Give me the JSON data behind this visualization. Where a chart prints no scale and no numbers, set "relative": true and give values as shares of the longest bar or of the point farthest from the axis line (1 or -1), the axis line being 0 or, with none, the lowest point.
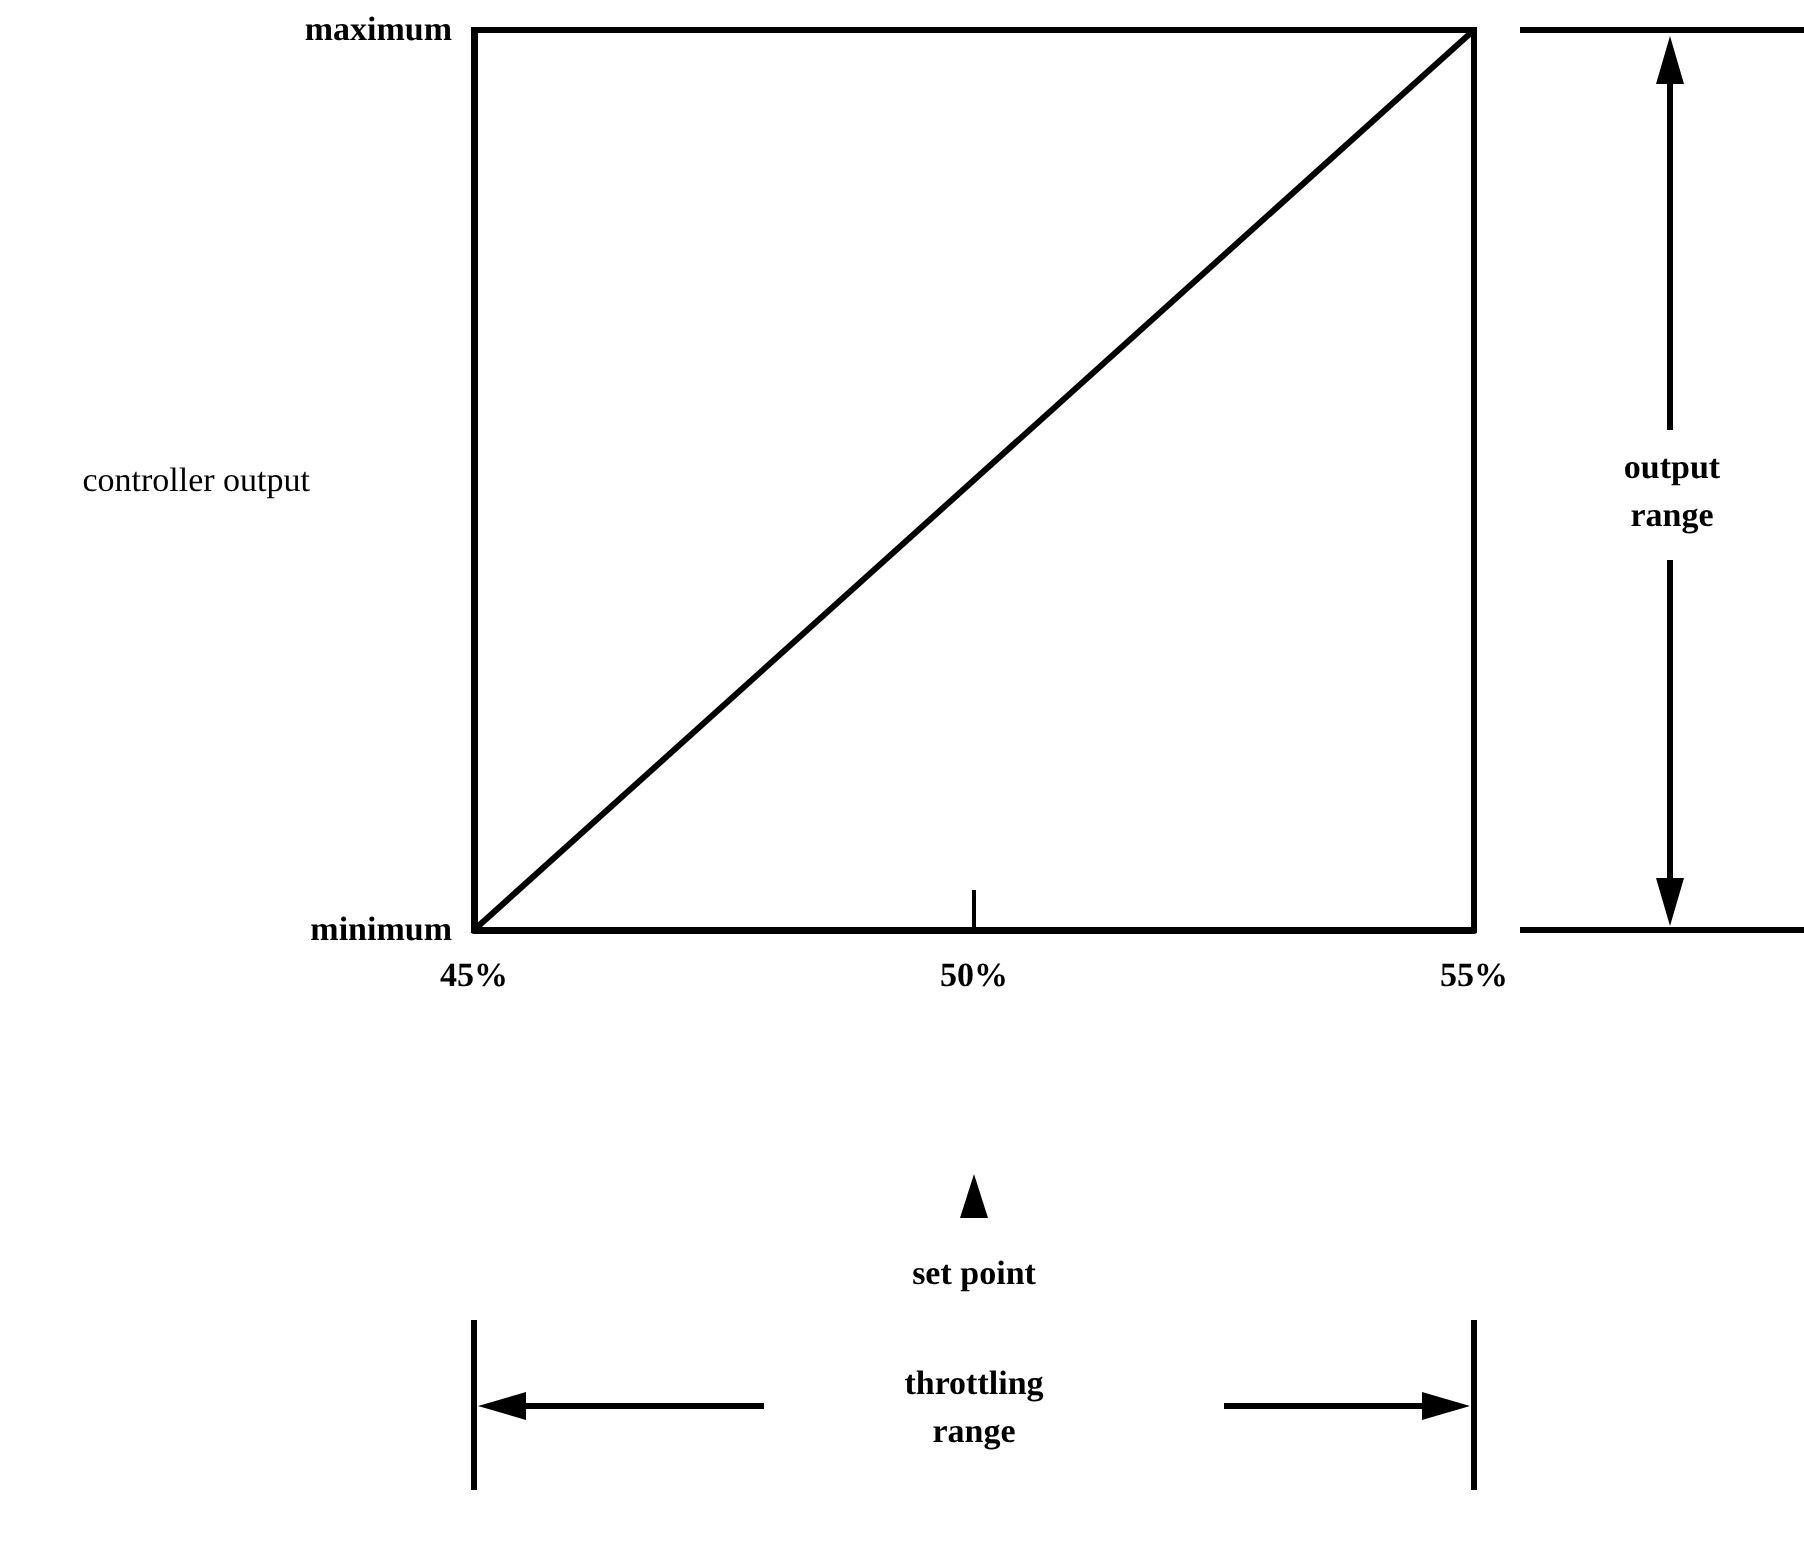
{
  "chart_data": {
    "type": "line",
    "ylabel": "controller output",
    "x": [
      45,
      55
    ],
    "series": [
      {
        "color": "#000000",
        "values": [
          0,
          1
        ]
      }
    ],
    "xlim": [
      45,
      55
    ],
    "xticks": [
      {
        "value": 45,
        "label": "45%"
      },
      {
        "value": 50,
        "label": "50%"
      },
      {
        "value": 55,
        "label": "55%"
      }
    ],
    "relative": true,
    "marker": "none",
    "line_style": "solid",
    "grid": false,
    "annotations": [
      "maximum",
      "minimum",
      "output range",
      "set point",
      "throttling range"
    ]
  }
}
